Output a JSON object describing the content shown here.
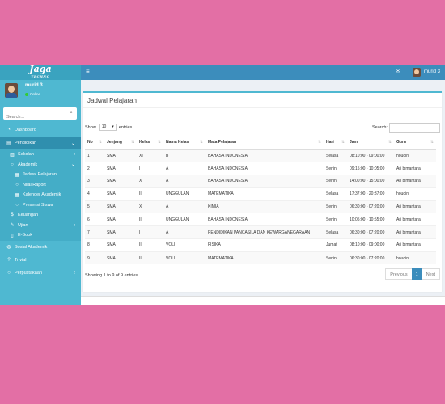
{
  "logo": {
    "mark": "Jaga",
    "sub": "TECHNO"
  },
  "user": {
    "name": "murid 3",
    "status": "Online"
  },
  "search": {
    "placeholder": "Search..."
  },
  "menu": {
    "dashboard": "Dashboard",
    "pendidikan": "Pendidikan",
    "sekolah": "Sekolah",
    "akademik": "Akademik",
    "jadwal": "Jadwal Pelajaran",
    "nilai": "Nilai Raport",
    "kalender": "Kalender Akademik",
    "presensi": "Presensi Siswa",
    "keuangan": "Keuangan",
    "ujian": "Ujian",
    "ebook": "E-Book",
    "sosial": "Sosial Akademik",
    "trivial": "Trivial",
    "perpustakaan": "Perpustakaan"
  },
  "topbar": {
    "username": "murid 3"
  },
  "box": {
    "title": "Jadwal Pelajaran",
    "show_label": "Show",
    "entries_value": "10",
    "entries_label": "entries",
    "search_label": "Search:",
    "info": "Showing 1 to 9 of 9 entries"
  },
  "table": {
    "headers": [
      "No",
      "Jenjang",
      "Kelas",
      "Nama Kelas",
      "Mata Pelajaran",
      "Hari",
      "Jam",
      "Guru"
    ],
    "rows": [
      [
        "1",
        "SMA",
        "XI",
        "B",
        "BAHASA INDONESIA",
        "Selasa",
        "08:10:00 - 09:00:00",
        "houdini"
      ],
      [
        "2",
        "SMA",
        "I",
        "A",
        "BAHASA INDONESIA",
        "Senin",
        "09:15:00 - 10:05:00",
        "Ari bimantara"
      ],
      [
        "3",
        "SMA",
        "X",
        "A",
        "BAHASA INDONESIA",
        "Senin",
        "14:00:00 - 15:00:00",
        "Ari bimantara"
      ],
      [
        "4",
        "SMA",
        "II",
        "UNGGULAN",
        "MATEMATIKA",
        "Selasa",
        "17:37:00 - 20:37:00",
        "houdini"
      ],
      [
        "5",
        "SMA",
        "X",
        "A",
        "KIMIA",
        "Senin",
        "06:30:00 - 07:20:00",
        "Ari bimantara"
      ],
      [
        "6",
        "SMA",
        "II",
        "UNGGULAN",
        "BAHASA INDONESIA",
        "Senin",
        "10:05:00 - 10:55:00",
        "Ari bimantara"
      ],
      [
        "7",
        "SMA",
        "I",
        "A",
        "PENDIDIKAN PANCASILA DAN KEWARGANEGARAAN",
        "Selasa",
        "06:30:00 - 07:20:00",
        "Ari bimantara"
      ],
      [
        "8",
        "SMA",
        "III",
        "VOLI",
        "FISIKA",
        "Jumat",
        "08:10:00 - 09:00:00",
        "Ari bimantara"
      ],
      [
        "9",
        "SMA",
        "III",
        "VOLI",
        "MATEMATIKA",
        "Senin",
        "06:30:00 - 07:20:00",
        "houdini"
      ]
    ]
  },
  "pager": {
    "previous": "Previous",
    "current": "1",
    "next": "Next"
  }
}
